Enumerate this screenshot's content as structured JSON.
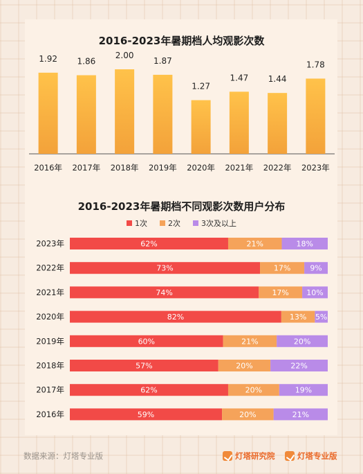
{
  "colors": {
    "bar_top": "#ffc24a",
    "bar_bottom": "#f3a23a",
    "seg1": "#f24a47",
    "seg2": "#f5a35a",
    "seg3": "#b98be8",
    "accent": "#ea6a2a"
  },
  "chart_data": [
    {
      "type": "bar",
      "title": "2016-2023年暑期档人均观影次数",
      "categories": [
        "2016年",
        "2017年",
        "2018年",
        "2019年",
        "2020年",
        "2021年",
        "2022年",
        "2023年"
      ],
      "values": [
        1.92,
        1.86,
        2.0,
        1.87,
        1.27,
        1.47,
        1.44,
        1.78
      ],
      "value_labels": [
        "1.92",
        "1.86",
        "2.00",
        "1.87",
        "1.27",
        "1.47",
        "1.44",
        "1.78"
      ],
      "ylim": [
        0,
        2.2
      ],
      "grid": false
    },
    {
      "type": "bar",
      "orientation": "horizontal",
      "stacked": true,
      "title": "2016-2023年暑期档不同观影次数用户分布",
      "categories": [
        "2023年",
        "2022年",
        "2021年",
        "2020年",
        "2019年",
        "2018年",
        "2017年",
        "2016年"
      ],
      "series": [
        {
          "name": "1次",
          "values": [
            62,
            73,
            74,
            82,
            60,
            57,
            62,
            59
          ],
          "labels": [
            "62%",
            "73%",
            "74%",
            "82%",
            "60%",
            "57%",
            "62%",
            "59%"
          ]
        },
        {
          "name": "2次",
          "values": [
            21,
            17,
            17,
            13,
            21,
            20,
            20,
            20
          ],
          "labels": [
            "21%",
            "17%",
            "17%",
            "13%",
            "21%",
            "20%",
            "20%",
            "20%"
          ]
        },
        {
          "name": "3次及以上",
          "values": [
            18,
            9,
            10,
            5,
            20,
            22,
            19,
            21
          ],
          "labels": [
            "18%",
            "9%",
            "10%",
            "5%",
            "20%",
            "22%",
            "19%",
            "21%"
          ]
        }
      ],
      "legend_position": "top"
    }
  ],
  "footer": {
    "source": "数据来源：灯塔专业版",
    "logo1": "灯塔研究院",
    "logo2": "灯塔专业版"
  }
}
